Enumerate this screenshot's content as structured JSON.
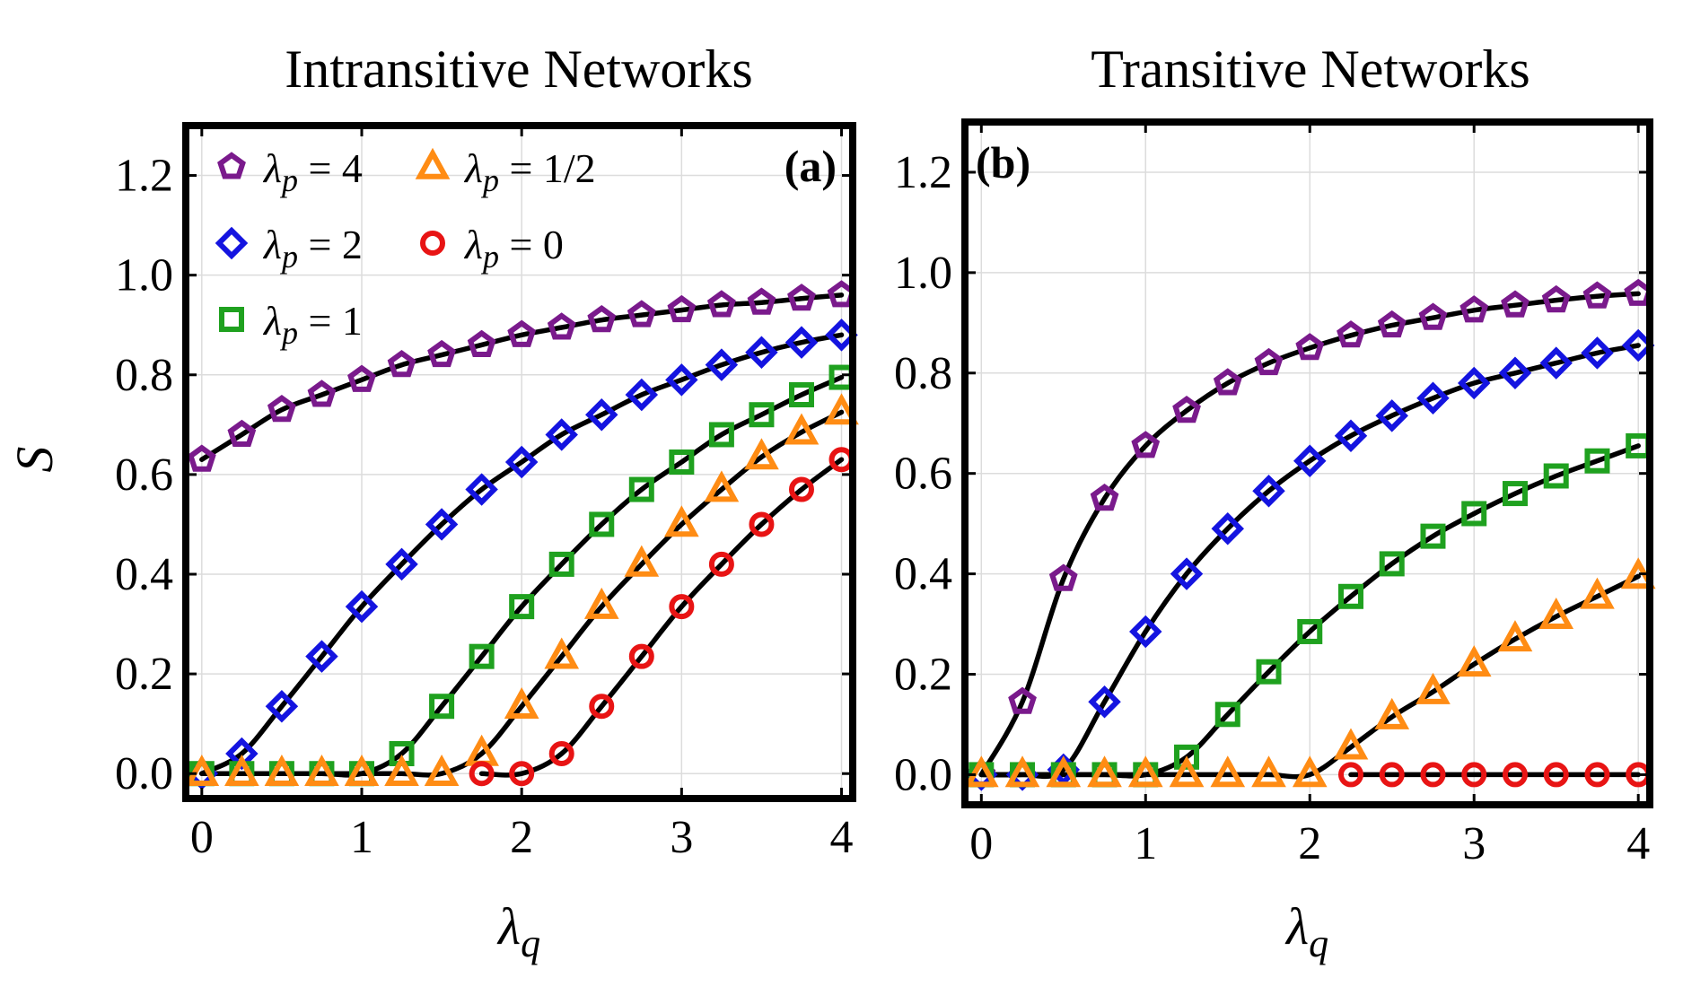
{
  "chart_data": [
    {
      "type": "line",
      "title": "Intransitive Networks",
      "panel_label": "(a)",
      "xlabel": "λq",
      "ylabel": "S",
      "xlim": [
        -0.1,
        4.07
      ],
      "ylim": [
        -0.05,
        1.3
      ],
      "xticks": [
        "0",
        "1",
        "2",
        "3",
        "4"
      ],
      "yticks": [
        "0.0",
        "0.2",
        "0.4",
        "0.6",
        "0.8",
        "1.0",
        "1.2"
      ],
      "grid": true,
      "legend_placement": "top-left",
      "x": [
        0,
        0.25,
        0.5,
        0.75,
        1,
        1.25,
        1.5,
        1.75,
        2,
        2.25,
        2.5,
        2.75,
        3,
        3.25,
        3.5,
        3.75,
        4
      ],
      "series": [
        {
          "name": "λp = 4",
          "marker": "pentagon",
          "color": "#7a1a8c",
          "values": [
            0.63,
            0.68,
            0.73,
            0.76,
            0.79,
            0.82,
            0.84,
            0.86,
            0.88,
            0.895,
            0.91,
            0.92,
            0.93,
            0.94,
            0.945,
            0.953,
            0.96
          ]
        },
        {
          "name": "λp = 2",
          "marker": "diamond",
          "color": "#1414e0",
          "values": [
            0,
            0.04,
            0.135,
            0.235,
            0.335,
            0.42,
            0.5,
            0.57,
            0.625,
            0.68,
            0.72,
            0.76,
            0.79,
            0.82,
            0.845,
            0.865,
            0.88
          ]
        },
        {
          "name": "λp = 1",
          "marker": "square",
          "color": "#1fa11f",
          "values": [
            0,
            0,
            0,
            0,
            0,
            0.04,
            0.135,
            0.235,
            0.335,
            0.42,
            0.5,
            0.57,
            0.625,
            0.68,
            0.72,
            0.76,
            0.795
          ]
        },
        {
          "name": "λp = 1/2",
          "marker": "triangle",
          "color": "#ff8c14",
          "values": [
            0,
            0,
            0,
            0,
            0,
            0,
            0,
            0.04,
            0.135,
            0.235,
            0.335,
            0.42,
            0.5,
            0.57,
            0.635,
            0.685,
            0.725
          ]
        },
        {
          "name": "λp = 0",
          "marker": "circle",
          "color": "#e81414",
          "values": [
            null,
            null,
            null,
            null,
            null,
            null,
            null,
            0,
            0,
            0.04,
            0.135,
            0.235,
            0.335,
            0.42,
            0.5,
            0.57,
            0.63
          ]
        }
      ]
    },
    {
      "type": "line",
      "title": "Transitive Networks",
      "panel_label": "(b)",
      "xlabel": "λq",
      "ylabel": "",
      "xlim": [
        -0.1,
        4.07
      ],
      "ylim": [
        -0.06,
        1.3
      ],
      "xticks": [
        "0",
        "1",
        "2",
        "3",
        "4"
      ],
      "yticks": [
        "0.0",
        "0.2",
        "0.4",
        "0.6",
        "0.8",
        "1.0",
        "1.2"
      ],
      "grid": true,
      "x": [
        0,
        0.25,
        0.5,
        0.75,
        1,
        1.25,
        1.5,
        1.75,
        2,
        2.25,
        2.5,
        2.75,
        3,
        3.25,
        3.5,
        3.75,
        4
      ],
      "series": [
        {
          "name": "λp = 4",
          "marker": "pentagon",
          "color": "#7a1a8c",
          "values": [
            0,
            0.145,
            0.39,
            0.55,
            0.655,
            0.725,
            0.78,
            0.82,
            0.85,
            0.875,
            0.895,
            0.91,
            0.925,
            0.935,
            0.945,
            0.953,
            0.958
          ]
        },
        {
          "name": "λp = 2",
          "marker": "diamond",
          "color": "#1414e0",
          "values": [
            0,
            0,
            0.01,
            0.145,
            0.285,
            0.4,
            0.49,
            0.565,
            0.625,
            0.675,
            0.715,
            0.75,
            0.78,
            0.8,
            0.82,
            0.84,
            0.855
          ]
        },
        {
          "name": "λp = 1",
          "marker": "square",
          "color": "#1fa11f",
          "values": [
            0,
            0,
            0,
            0,
            0,
            0.035,
            0.12,
            0.205,
            0.285,
            0.355,
            0.42,
            0.475,
            0.52,
            0.56,
            0.595,
            0.625,
            0.655
          ]
        },
        {
          "name": "λp = 1/2",
          "marker": "triangle",
          "color": "#ff8c14",
          "values": [
            0,
            0,
            0,
            0,
            0,
            0,
            0,
            0,
            0,
            0.055,
            0.115,
            0.165,
            0.22,
            0.27,
            0.315,
            0.355,
            0.395
          ]
        },
        {
          "name": "λp = 0",
          "marker": "circle",
          "color": "#e81414",
          "values": [
            null,
            null,
            null,
            null,
            null,
            null,
            null,
            null,
            null,
            0,
            0,
            0,
            0,
            0,
            0,
            0,
            0
          ]
        }
      ]
    }
  ]
}
